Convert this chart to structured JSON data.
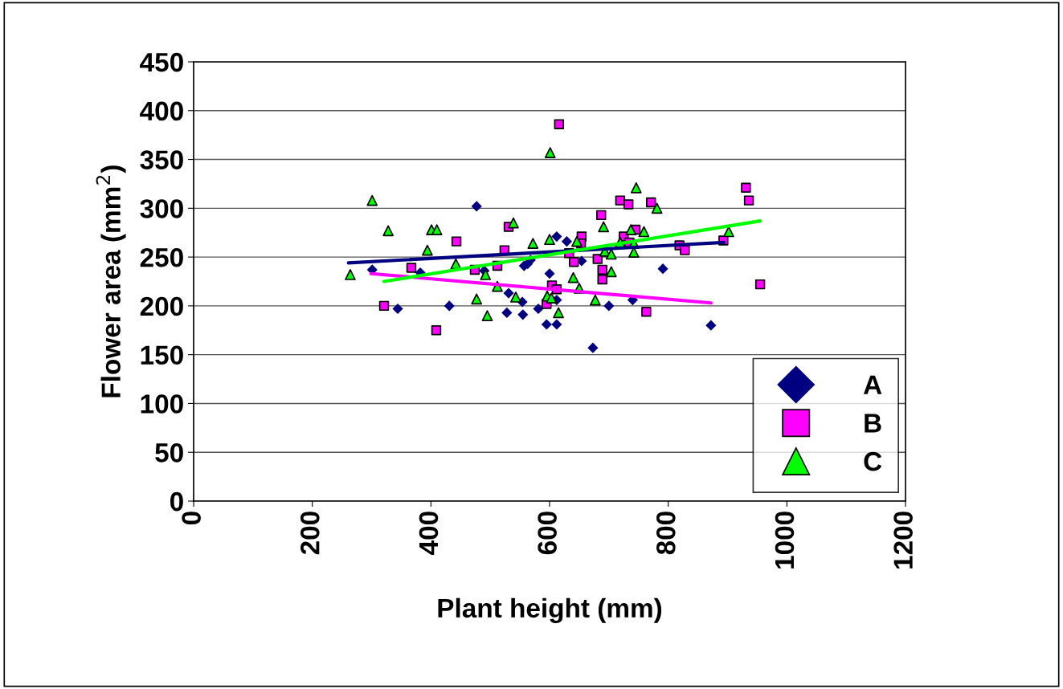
{
  "chart_data": {
    "type": "scatter",
    "xlabel": "Plant height (mm)",
    "ylabel": "Flower area (mm$^{2}$)",
    "xlim": [
      0,
      1200
    ],
    "xticks": [
      0,
      200,
      400,
      600,
      800,
      1000,
      1200
    ],
    "ylim": [
      0,
      450
    ],
    "yticks": [
      0,
      50,
      100,
      150,
      200,
      250,
      300,
      350,
      400,
      450
    ],
    "grid": "y",
    "legend": "bottom right",
    "series": [
      {
        "name": "A",
        "marker": "diamond",
        "color": "#000080",
        "x": [
          301,
          344,
          382,
          431,
          477,
          490,
          528,
          531,
          554,
          555,
          557,
          563,
          568,
          581,
          600,
          595,
          612,
          612,
          612,
          629,
          654,
          673,
          700,
          740,
          791,
          872
        ],
        "values": [
          237,
          197,
          234,
          200,
          302,
          236,
          193,
          213,
          204,
          191,
          241,
          243,
          247,
          197,
          233,
          181,
          181,
          206,
          271,
          266,
          246,
          157,
          200,
          206,
          238,
          180
        ]
      },
      {
        "name": "B",
        "marker": "square",
        "color": "#ff00ff",
        "x": [
          321,
          367,
          409,
          443,
          474,
          512,
          524,
          531,
          616,
          633,
          641,
          654,
          653,
          681,
          687,
          689,
          689,
          604,
          612,
          595,
          719,
          733,
          771,
          745,
          725,
          734,
          763,
          931,
          936,
          819,
          828,
          893,
          955
        ],
        "values": [
          200,
          239,
          175,
          266,
          237,
          241,
          257,
          281,
          386,
          254,
          245,
          271,
          264,
          248,
          293,
          237,
          227,
          221,
          217,
          202,
          308,
          304,
          306,
          278,
          271,
          265,
          194,
          321,
          308,
          262,
          257,
          267,
          222
        ]
      },
      {
        "name": "C",
        "marker": "triangle",
        "color": "#00ff00",
        "x": [
          264,
          301,
          328,
          394,
          401,
          410,
          442,
          477,
          492,
          495,
          512,
          539,
          543,
          572,
          596,
          600,
          601,
          603,
          615,
          640,
          646,
          650,
          677,
          691,
          693,
          704,
          704,
          719,
          737,
          742,
          742,
          746,
          759,
          781,
          902
        ],
        "values": [
          232,
          308,
          277,
          257,
          278,
          278,
          243,
          207,
          232,
          190,
          220,
          285,
          209,
          264,
          210,
          268,
          357,
          208,
          193,
          229,
          266,
          218,
          206,
          281,
          256,
          253,
          235,
          265,
          278,
          264,
          255,
          321,
          276,
          300,
          276
        ]
      },
      {
        "type": "line",
        "marker": "none",
        "color": "#000080",
        "x": [
          261,
          894
        ],
        "values": [
          244,
          265
        ]
      },
      {
        "type": "line",
        "marker": "none",
        "color": "#ff00ff",
        "x": [
          299,
          872
        ],
        "values": [
          233,
          203
        ]
      },
      {
        "type": "line",
        "marker": "none",
        "color": "#00ff00",
        "x": [
          321,
          955
        ],
        "values": [
          225,
          287
        ]
      }
    ]
  }
}
